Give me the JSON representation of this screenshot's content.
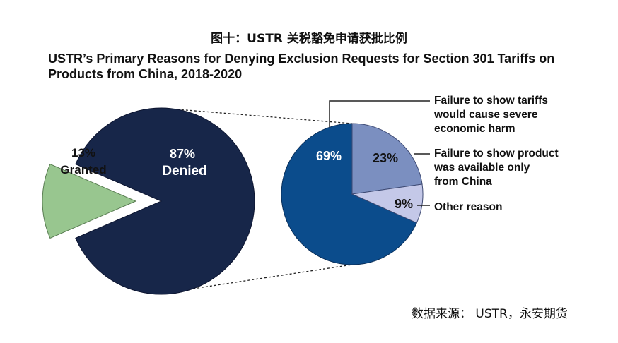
{
  "chinese_title": "图十：USTR 关税豁免申请获批比例",
  "source": "数据来源： USTR，永安期货",
  "colors": {
    "denied": "#172649",
    "granted": "#98c68f",
    "reason_main": "#0b4c8c",
    "reason_2": "#7b8fc0",
    "reason_3": "#c4c8e8"
  },
  "chart_data": [
    {
      "type": "pie",
      "title": "USTR’s Primary Reasons for Denying Exclusion Requests for Section 301 Tariffs on Products from China, 2018-2020",
      "slices": [
        {
          "label": "Denied",
          "value": 87,
          "display": "87%"
        },
        {
          "label": "Granted",
          "value": 13,
          "display": "13%"
        }
      ]
    },
    {
      "type": "pie",
      "slices": [
        {
          "label": "Failure to show tariffs would cause severe economic harm",
          "value": 69,
          "display": "69%"
        },
        {
          "label": "Failure to show product was available only from China",
          "value": 23,
          "display": "23%"
        },
        {
          "label": "Other reason",
          "value": 9,
          "display": "9%"
        }
      ]
    }
  ]
}
